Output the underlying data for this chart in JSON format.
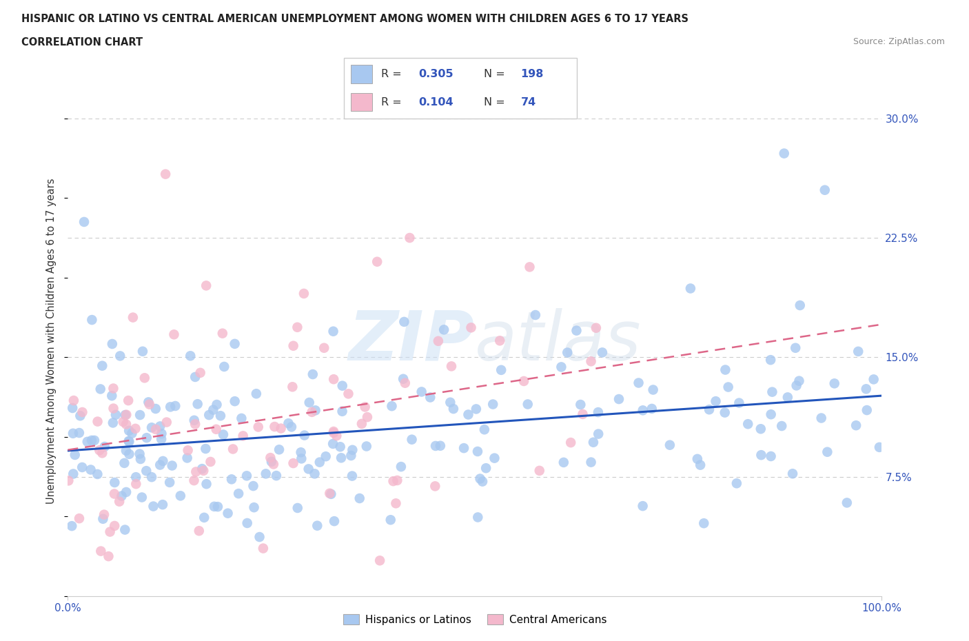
{
  "title_line1": "HISPANIC OR LATINO VS CENTRAL AMERICAN UNEMPLOYMENT AMONG WOMEN WITH CHILDREN AGES 6 TO 17 YEARS",
  "title_line2": "CORRELATION CHART",
  "source_text": "Source: ZipAtlas.com",
  "ylabel": "Unemployment Among Women with Children Ages 6 to 17 years",
  "ytick_labels": [
    "7.5%",
    "15.0%",
    "22.5%",
    "30.0%"
  ],
  "ytick_values": [
    0.075,
    0.15,
    0.225,
    0.3
  ],
  "watermark_zip": "ZIP",
  "watermark_atlas": "atlas",
  "legend_r1": "0.305",
  "legend_n1": "198",
  "legend_r2": "0.104",
  "legend_n2": "74",
  "blue_color": "#a8c8f0",
  "pink_color": "#f4b8cc",
  "blue_line_color": "#2255bb",
  "pink_line_color": "#dd6688",
  "text_color": "#3355bb",
  "label_color": "#333333",
  "grid_color": "#cccccc",
  "x_min": 0.0,
  "x_max": 1.0,
  "y_min": 0.0,
  "y_max": 0.32
}
